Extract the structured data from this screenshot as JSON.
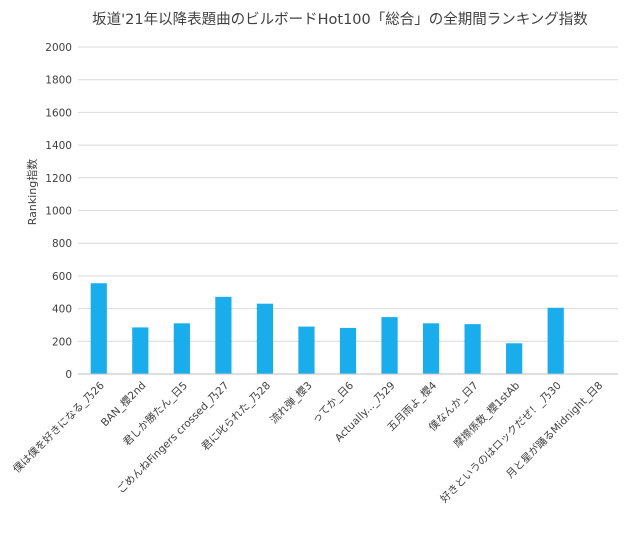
{
  "chart_data": {
    "type": "bar",
    "title": "坂道'21年以降表題曲のビルボードHot100「総合」の全期間ランキング指数",
    "xlabel": "",
    "ylabel": "Ranking指数",
    "ylim": [
      0,
      2000
    ],
    "yticks": [
      0,
      200,
      400,
      600,
      800,
      1000,
      1200,
      1400,
      1600,
      1800,
      2000
    ],
    "grid": true,
    "legend": "none",
    "bar_color": "#1aadec",
    "categories": [
      "僕は僕を好きになる_乃26",
      "BAN_櫻2nd",
      "君しか勝たん_日5",
      "ごめんねFingers crossed_乃27",
      "君に叱られた_乃28",
      "流れ弾_櫻3",
      "ってか_日6",
      "Actually..._乃29",
      "五月雨よ_櫻4",
      "僕なんか_日7",
      "摩擦係数_櫻1stAb",
      "好きというのはロックだぜ！_乃30",
      "月と星が踊るMidnight_日8"
    ],
    "values": [
      555,
      285,
      310,
      472,
      430,
      290,
      282,
      348,
      310,
      305,
      188,
      405,
      0
    ]
  }
}
